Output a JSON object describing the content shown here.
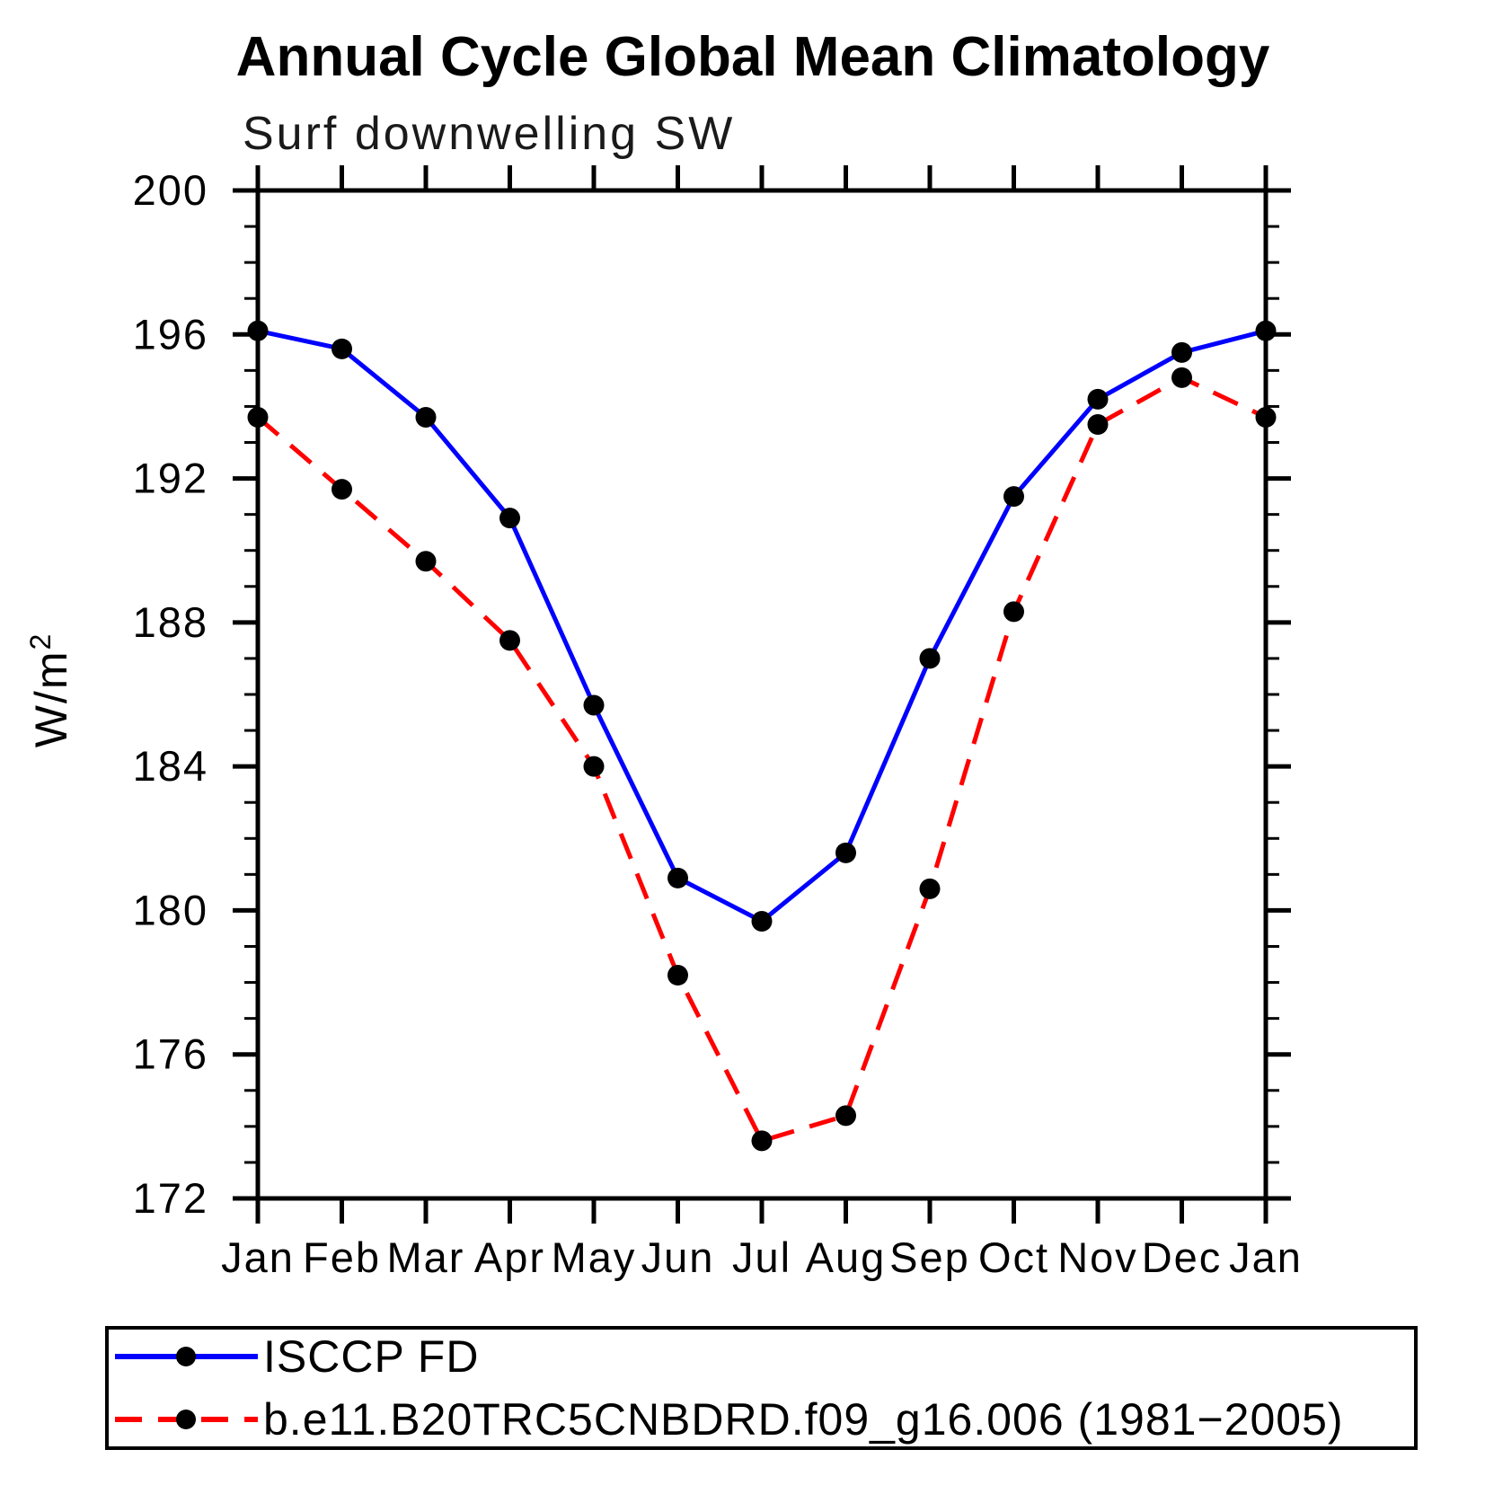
{
  "page": {
    "background": "#ffffff"
  },
  "axes": {
    "ylabel_base": "W/m",
    "ylabel_exponent": "2",
    "ytick_labels": [
      "200",
      "196",
      "192",
      "188",
      "184",
      "180",
      "176",
      "172"
    ],
    "colors": {
      "axis": "#000000",
      "text": "#000000"
    }
  },
  "chart_data": {
    "type": "line",
    "title": "Annual Cycle Global Mean Climatology",
    "subtitle": "Surf downwelling SW",
    "xlabel": "",
    "ylabel": "W/m²",
    "ylim": [
      172,
      200
    ],
    "ytick_step_major": 4,
    "ytick_step_minor": 1,
    "grid": false,
    "legend_position": "bottom",
    "categories": [
      "Jan",
      "Feb",
      "Mar",
      "Apr",
      "May",
      "Jun",
      "Jul",
      "Aug",
      "Sep",
      "Oct",
      "Nov",
      "Dec",
      "Jan"
    ],
    "series": [
      {
        "name": "ISCCP FD",
        "color": "#0000ff",
        "style": "solid",
        "marker": "circle",
        "marker_color": "#000000",
        "values": [
          196.1,
          195.6,
          193.7,
          190.9,
          185.7,
          180.9,
          179.7,
          181.6,
          187.0,
          191.5,
          194.2,
          195.5,
          196.1
        ]
      },
      {
        "name": "b.e11.B20TRC5CNBDRD.f09_g16.006 (1981−2005)",
        "color": "#ff0000",
        "style": "dashed",
        "marker": "circle",
        "marker_color": "#000000",
        "values": [
          193.7,
          191.7,
          189.7,
          187.5,
          184.0,
          178.2,
          173.6,
          174.3,
          180.6,
          188.3,
          193.5,
          194.8,
          193.7
        ]
      }
    ]
  }
}
